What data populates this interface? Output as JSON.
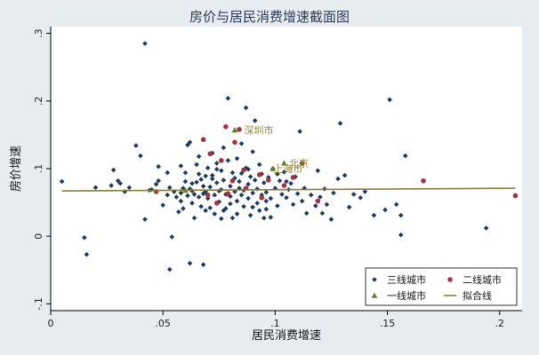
{
  "colors": {
    "background": "#e6ecf0",
    "plot_bg": "#ffffff",
    "tier3": "#1f3b5c",
    "tier2": "#a83240",
    "tier1": "#5f7f2a",
    "fit": "#8a7d39"
  },
  "chart_data": {
    "type": "scatter",
    "title": "房价与居民消费增速截面图",
    "xlabel": "居民消费增速",
    "ylabel": "房价增速",
    "xlim": [
      0,
      0.21
    ],
    "ylim": [
      -0.11,
      0.31
    ],
    "xticks": [
      0,
      0.05,
      0.1,
      0.15,
      0.2
    ],
    "xtick_labels": [
      "0",
      ".05",
      ".1",
      ".15",
      ".2"
    ],
    "yticks": [
      -0.1,
      0,
      0.1,
      0.2,
      0.3
    ],
    "ytick_labels": [
      "-.1",
      "0",
      ".1",
      ".2",
      ".3"
    ],
    "grid": false,
    "legend_position": "bottom-right",
    "legend": [
      "三线城市",
      "二线城市",
      "一线城市",
      "拟合线"
    ],
    "series": [
      {
        "name": "三线城市",
        "marker": "diamond",
        "points": [
          [
            0.005,
            0.081
          ],
          [
            0.015,
            -0.002
          ],
          [
            0.016,
            -0.027
          ],
          [
            0.02,
            0.072
          ],
          [
            0.027,
            0.075
          ],
          [
            0.028,
            0.098
          ],
          [
            0.03,
            0.082
          ],
          [
            0.031,
            0.078
          ],
          [
            0.033,
            0.066
          ],
          [
            0.035,
            0.072
          ],
          [
            0.038,
            0.134
          ],
          [
            0.04,
            0.119
          ],
          [
            0.042,
            0.285
          ],
          [
            0.042,
            0.025
          ],
          [
            0.044,
            0.068
          ],
          [
            0.045,
            0.069
          ],
          [
            0.047,
            0.077
          ],
          [
            0.048,
            0.082
          ],
          [
            0.048,
            0.103
          ],
          [
            0.05,
            0.046
          ],
          [
            0.052,
            0.094
          ],
          [
            0.052,
            0.061
          ],
          [
            0.053,
            0.072
          ],
          [
            0.053,
            -0.049
          ],
          [
            0.054,
            -0.001
          ],
          [
            0.055,
            0.066
          ],
          [
            0.056,
            0.058
          ],
          [
            0.057,
            0.036
          ],
          [
            0.058,
            0.104
          ],
          [
            0.058,
            0.064
          ],
          [
            0.059,
            0.071
          ],
          [
            0.059,
            0.041
          ],
          [
            0.06,
            0.094
          ],
          [
            0.06,
            0.081
          ],
          [
            0.061,
            0.06
          ],
          [
            0.061,
            0.135
          ],
          [
            0.062,
            0.139
          ],
          [
            0.062,
            0.07
          ],
          [
            0.063,
            0.078
          ],
          [
            0.063,
            0.049
          ],
          [
            0.064,
            0.027
          ],
          [
            0.064,
            0.062
          ],
          [
            0.065,
            0.106
          ],
          [
            0.065,
            0.08
          ],
          [
            0.066,
            0.058
          ],
          [
            0.066,
            0.118
          ],
          [
            0.067,
            0.084
          ],
          [
            0.067,
            0.044
          ],
          [
            0.068,
            0.074
          ],
          [
            0.068,
            0.063
          ],
          [
            0.069,
            0.089
          ],
          [
            0.069,
            0.066
          ],
          [
            0.07,
            0.101
          ],
          [
            0.07,
            0.056
          ],
          [
            0.071,
            0.042
          ],
          [
            0.071,
            0.073
          ],
          [
            0.072,
            0.123
          ],
          [
            0.072,
            0.09
          ],
          [
            0.073,
            0.061
          ],
          [
            0.073,
            0.033
          ],
          [
            0.074,
            0.108
          ],
          [
            0.074,
            0.079
          ],
          [
            0.075,
            0.067
          ],
          [
            0.075,
            0.051
          ],
          [
            0.076,
            0.097
          ],
          [
            0.076,
            0.069
          ],
          [
            0.077,
            0.131
          ],
          [
            0.077,
            0.083
          ],
          [
            0.078,
            0.062
          ],
          [
            0.078,
            0.041
          ],
          [
            0.079,
            0.204
          ],
          [
            0.079,
            0.112
          ],
          [
            0.08,
            0.074
          ],
          [
            0.08,
            0.059
          ],
          [
            0.081,
            0.094
          ],
          [
            0.081,
            0.027
          ],
          [
            0.082,
            0.086
          ],
          [
            0.082,
            0.066
          ],
          [
            0.083,
            0.115
          ],
          [
            0.083,
            0.052
          ],
          [
            0.084,
            0.081
          ],
          [
            0.084,
            0.071
          ],
          [
            0.085,
            0.137
          ],
          [
            0.085,
            0.093
          ],
          [
            0.086,
            0.068
          ],
          [
            0.086,
            0.044
          ],
          [
            0.087,
            0.19
          ],
          [
            0.087,
            0.101
          ],
          [
            0.088,
            0.077
          ],
          [
            0.088,
            0.056
          ],
          [
            0.089,
            0.088
          ],
          [
            0.089,
            0.031
          ],
          [
            0.09,
            0.125
          ],
          [
            0.09,
            0.064
          ],
          [
            0.091,
            0.171
          ],
          [
            0.091,
            0.083
          ],
          [
            0.092,
            0.07
          ],
          [
            0.092,
            0.049
          ],
          [
            0.093,
            0.106
          ],
          [
            0.093,
            0.038
          ],
          [
            0.094,
            0.092
          ],
          [
            0.094,
            0.061
          ],
          [
            0.095,
            0.079
          ],
          [
            0.095,
            0.027
          ],
          [
            0.096,
            0.065
          ],
          [
            0.097,
            0.087
          ],
          [
            0.098,
            0.056
          ],
          [
            0.099,
            0.1
          ],
          [
            0.1,
            0.071
          ],
          [
            0.101,
            0.045
          ],
          [
            0.102,
            0.082
          ],
          [
            0.103,
            0.062
          ],
          [
            0.104,
            0.095
          ],
          [
            0.105,
            0.057
          ],
          [
            0.106,
            0.069
          ],
          [
            0.107,
            0.078
          ],
          [
            0.108,
            0.047
          ],
          [
            0.109,
            0.088
          ],
          [
            0.11,
            0.063
          ],
          [
            0.111,
            0.155
          ],
          [
            0.112,
            0.052
          ],
          [
            0.113,
            0.071
          ],
          [
            0.114,
            0.034
          ],
          [
            0.116,
            0.061
          ],
          [
            0.118,
            0.045
          ],
          [
            0.119,
            0.097
          ],
          [
            0.12,
            0.058
          ],
          [
            0.121,
            0.034
          ],
          [
            0.122,
            0.07
          ],
          [
            0.123,
            0.047
          ],
          [
            0.125,
            0.025
          ],
          [
            0.126,
            0.064
          ],
          [
            0.128,
            0.085
          ],
          [
            0.129,
            0.167
          ],
          [
            0.131,
            0.09
          ],
          [
            0.133,
            0.043
          ],
          [
            0.135,
            0.062
          ],
          [
            0.138,
            0.057
          ],
          [
            0.14,
            0.066
          ],
          [
            0.144,
            0.031
          ],
          [
            0.149,
            0.039
          ],
          [
            0.151,
            0.202
          ],
          [
            0.154,
            0.047
          ],
          [
            0.156,
            0.002
          ],
          [
            0.156,
            0.031
          ],
          [
            0.158,
            0.119
          ],
          [
            0.194,
            0.012
          ],
          [
            0.08,
            0.048
          ],
          [
            0.085,
            0.061
          ],
          [
            0.09,
            0.043
          ],
          [
            0.066,
            0.092
          ],
          [
            0.072,
            0.085
          ],
          [
            0.058,
            0.052
          ],
          [
            0.096,
            0.052
          ],
          [
            0.101,
            0.092
          ],
          [
            0.077,
            0.038
          ],
          [
            0.083,
            0.033
          ],
          [
            0.088,
            0.099
          ],
          [
            0.069,
            0.038
          ],
          [
            0.063,
            0.067
          ],
          [
            0.074,
            0.099
          ],
          [
            0.105,
            0.081
          ],
          [
            0.062,
            -0.04
          ],
          [
            0.068,
            -0.042
          ],
          [
            0.076,
            0.026
          ],
          [
            0.096,
            0.04
          ],
          [
            0.098,
            0.028
          ]
        ]
      },
      {
        "name": "二线城市",
        "marker": "circle",
        "points": [
          [
            0.047,
            0.066
          ],
          [
            0.068,
            0.143
          ],
          [
            0.071,
            0.122
          ],
          [
            0.076,
            0.112
          ],
          [
            0.078,
            0.162
          ],
          [
            0.079,
            0.063
          ],
          [
            0.081,
            0.082
          ],
          [
            0.082,
            0.139
          ],
          [
            0.084,
            0.158
          ],
          [
            0.086,
            0.098
          ],
          [
            0.087,
            0.071
          ],
          [
            0.093,
            0.091
          ],
          [
            0.097,
            0.083
          ],
          [
            0.104,
            0.075
          ],
          [
            0.108,
            0.087
          ],
          [
            0.112,
            0.108
          ],
          [
            0.119,
            0.052
          ],
          [
            0.166,
            0.082
          ],
          [
            0.207,
            0.06
          ],
          [
            0.07,
            0.061
          ],
          [
            0.074,
            0.049
          ],
          [
            0.094,
            0.057
          ]
        ]
      },
      {
        "name": "一线城市",
        "marker": "triangle",
        "points": [
          [
            0.082,
            0.157
          ],
          [
            0.099,
            0.1
          ],
          [
            0.104,
            0.108
          ],
          [
            0.06,
            0.068
          ]
        ]
      }
    ],
    "fit_line": {
      "name": "拟合线",
      "x": [
        0.005,
        0.207
      ],
      "y": [
        0.067,
        0.071
      ]
    },
    "annotations": [
      {
        "label": "深圳市",
        "x": 0.085,
        "y": 0.157
      },
      {
        "label": "上海市",
        "x": 0.098,
        "y": 0.1
      },
      {
        "label": "北京",
        "x": 0.105,
        "y": 0.108
      }
    ]
  }
}
